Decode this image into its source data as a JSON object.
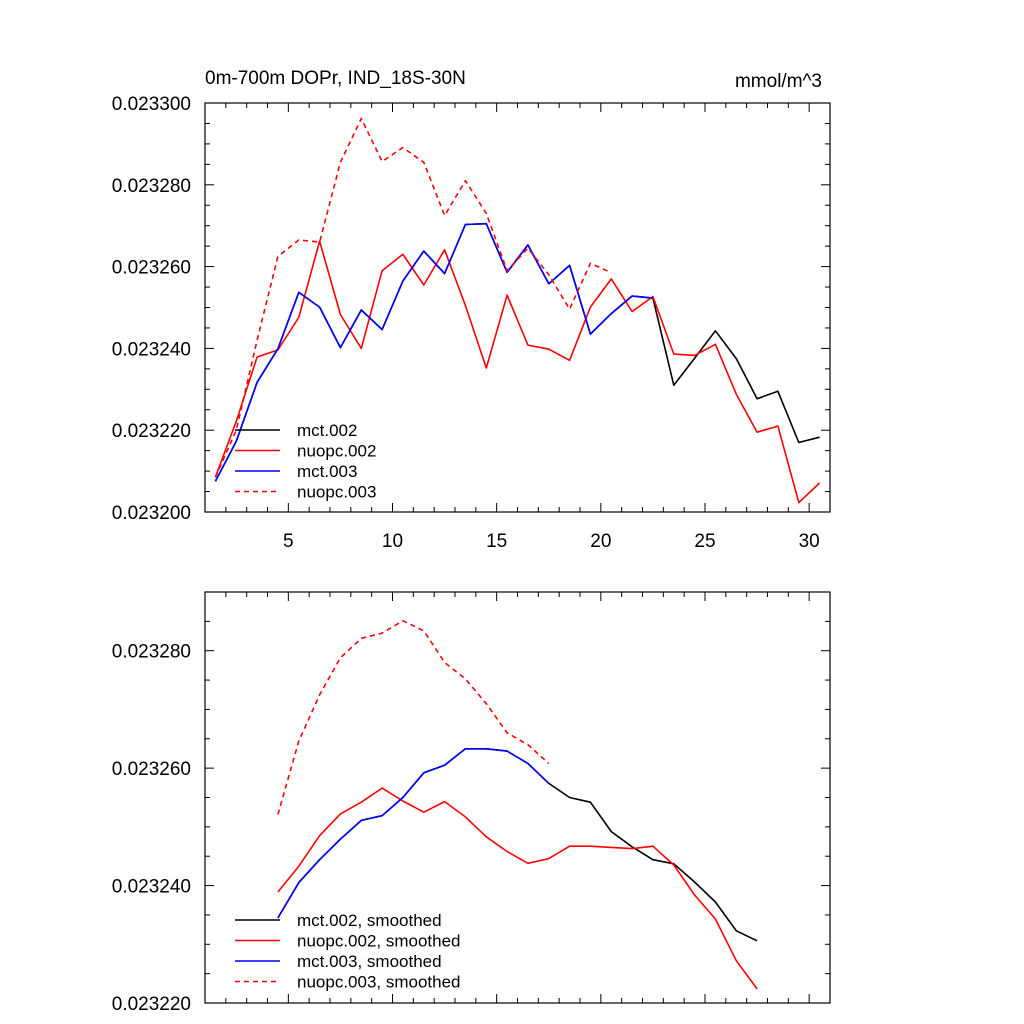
{
  "chart_data": [
    {
      "type": "line",
      "title": "0m-700m DOPr, IND_18S-30N",
      "units": "mmol/m^3",
      "xlabel": "",
      "ylabel": "",
      "xlim": [
        1,
        31
      ],
      "ylim": [
        0.0232,
        0.0233
      ],
      "xticks": [
        5,
        10,
        15,
        20,
        25,
        30
      ],
      "xtick_labels": [
        "5",
        "10",
        "15",
        "20",
        "25",
        "30"
      ],
      "yticks": [
        0.0232,
        0.02322,
        0.02324,
        0.02326,
        0.02328,
        0.0233
      ],
      "ytick_labels": [
        "0.023200",
        "0.023220",
        "0.023240",
        "0.023260",
        "0.023280",
        "0.023300"
      ],
      "legend_position": "bottom-left",
      "series": [
        {
          "name": "mct.002",
          "color": "#000000",
          "dash": "solid",
          "x": [
            1.5,
            2.5,
            3.5,
            4.5,
            5.5,
            6.5,
            7.5,
            8.5,
            9.5,
            10.5,
            11.5,
            12.5,
            13.5,
            14.5,
            15.5,
            16.5,
            17.5,
            18.5,
            19.5,
            20.5,
            21.5,
            22.5,
            23.5,
            24.5,
            25.5,
            26.5,
            27.5,
            28.5,
            29.5,
            30.5
          ],
          "values": [
            0.0232075,
            0.0232173,
            0.0232317,
            0.0232399,
            0.0232537,
            0.0232501,
            0.0232402,
            0.0232494,
            0.0232446,
            0.0232565,
            0.0232638,
            0.0232583,
            0.0232703,
            0.0232705,
            0.0232586,
            0.0232653,
            0.0232558,
            0.0232603,
            0.0232435,
            0.0232485,
            0.0232528,
            0.0232523,
            0.023231,
            0.0232376,
            0.0232443,
            0.0232375,
            0.0232277,
            0.0232295,
            0.023217,
            0.0232183
          ]
        },
        {
          "name": "nuopc.002",
          "color": "#ff0000",
          "dash": "solid",
          "x": [
            1.5,
            2.5,
            3.5,
            4.5,
            5.5,
            6.5,
            7.5,
            8.5,
            9.5,
            10.5,
            11.5,
            12.5,
            13.5,
            14.5,
            15.5,
            16.5,
            17.5,
            18.5,
            19.5,
            20.5,
            21.5,
            22.5,
            23.5,
            24.5,
            25.5,
            26.5,
            27.5,
            28.5,
            29.5,
            30.5
          ],
          "values": [
            0.0232085,
            0.0232222,
            0.0232379,
            0.0232396,
            0.0232476,
            0.0232662,
            0.0232483,
            0.02324,
            0.023259,
            0.023263,
            0.0232555,
            0.0232641,
            0.0232505,
            0.0232352,
            0.023253,
            0.0232408,
            0.0232398,
            0.0232371,
            0.0232501,
            0.023257,
            0.023249,
            0.0232527,
            0.0232386,
            0.0232383,
            0.023241,
            0.0232288,
            0.0232195,
            0.023221,
            0.0232023,
            0.0232071
          ]
        },
        {
          "name": "mct.003",
          "color": "#0000ff",
          "dash": "solid",
          "x": [
            1.5,
            2.5,
            3.5,
            4.5,
            5.5,
            6.5,
            7.5,
            8.5,
            9.5,
            10.5,
            11.5,
            12.5,
            13.5,
            14.5,
            15.5,
            16.5,
            17.5,
            18.5,
            19.5,
            20.5,
            21.5,
            22.5
          ],
          "values": [
            0.0232075,
            0.0232173,
            0.0232317,
            0.0232399,
            0.0232537,
            0.0232501,
            0.0232402,
            0.0232494,
            0.0232446,
            0.0232565,
            0.0232638,
            0.0232583,
            0.0232703,
            0.0232705,
            0.0232586,
            0.0232653,
            0.0232558,
            0.0232603,
            0.0232435,
            0.0232485,
            0.0232528,
            0.0232523
          ]
        },
        {
          "name": "nuopc.003",
          "color": "#ff0000",
          "dash": "dashed",
          "x": [
            1.5,
            2.5,
            3.5,
            4.5,
            5.5,
            6.5,
            7.5,
            8.5,
            9.5,
            10.5,
            11.5,
            12.5,
            13.5,
            14.5,
            15.5,
            16.5,
            17.5,
            18.5,
            19.5,
            20.5
          ],
          "values": [
            0.0232085,
            0.02322,
            0.023242,
            0.0232625,
            0.0232665,
            0.023266,
            0.0232855,
            0.0232962,
            0.0232857,
            0.0232891,
            0.0232855,
            0.0232725,
            0.023281,
            0.023273,
            0.023259,
            0.0232645,
            0.023258,
            0.0232496,
            0.0232608,
            0.0232585
          ]
        }
      ]
    },
    {
      "type": "line",
      "title": "",
      "xlabel": "",
      "ylabel": "",
      "xlim": [
        1,
        31
      ],
      "ylim": [
        0.02322,
        0.02329
      ],
      "xticks": [
        5,
        10,
        15,
        20,
        25,
        30
      ],
      "xtick_labels": [],
      "yticks": [
        0.02322,
        0.02324,
        0.02326,
        0.02328
      ],
      "ytick_labels": [
        "0.023220",
        "0.023240",
        "0.023260",
        "0.023280"
      ],
      "legend_position": "bottom-left",
      "series": [
        {
          "name": "mct.002, smoothed",
          "color": "#000000",
          "dash": "solid",
          "x": [
            4.5,
            5.5,
            6.5,
            7.5,
            8.5,
            9.5,
            10.5,
            11.5,
            12.5,
            13.5,
            14.5,
            15.5,
            16.5,
            17.5,
            18.5,
            19.5,
            20.5,
            21.5,
            22.5,
            23.5,
            24.5,
            25.5,
            26.5,
            27.5
          ],
          "values": [
            0.0232345,
            0.0232405,
            0.0232444,
            0.0232479,
            0.0232511,
            0.0232519,
            0.023255,
            0.0232592,
            0.0232605,
            0.0232633,
            0.0232633,
            0.0232629,
            0.0232608,
            0.0232574,
            0.023255,
            0.0232542,
            0.0232492,
            0.0232466,
            0.0232444,
            0.0232437,
            0.0232406,
            0.0232372,
            0.0232323,
            0.0232306
          ]
        },
        {
          "name": "nuopc.002, smoothed",
          "color": "#ff0000",
          "dash": "solid",
          "x": [
            4.5,
            5.5,
            6.5,
            7.5,
            8.5,
            9.5,
            10.5,
            11.5,
            12.5,
            13.5,
            14.5,
            15.5,
            16.5,
            17.5,
            18.5,
            19.5,
            20.5,
            21.5,
            22.5,
            23.5,
            24.5,
            25.5,
            26.5,
            27.5
          ],
          "values": [
            0.0232389,
            0.0232433,
            0.0232485,
            0.0232522,
            0.0232542,
            0.0232566,
            0.0232544,
            0.0232525,
            0.0232543,
            0.0232517,
            0.0232483,
            0.0232458,
            0.0232438,
            0.0232446,
            0.0232467,
            0.0232467,
            0.0232465,
            0.0232463,
            0.0232467,
            0.0232435,
            0.0232384,
            0.0232343,
            0.0232272,
            0.0232224
          ]
        },
        {
          "name": "mct.003, smoothed",
          "color": "#0000ff",
          "dash": "solid",
          "x": [
            4.5,
            5.5,
            6.5,
            7.5,
            8.5,
            9.5,
            10.5,
            11.5,
            12.5,
            13.5,
            14.5,
            15.5,
            16.5,
            17.5
          ],
          "values": [
            0.0232345,
            0.0232405,
            0.0232444,
            0.0232479,
            0.0232511,
            0.0232519,
            0.023255,
            0.0232592,
            0.0232605,
            0.0232633,
            0.0232633,
            0.0232629,
            0.0232608,
            0.0232574
          ]
        },
        {
          "name": "nuopc.003, smoothed",
          "color": "#ff0000",
          "dash": "dashed",
          "x": [
            4.5,
            5.5,
            6.5,
            7.5,
            8.5,
            9.5,
            10.5,
            11.5,
            12.5,
            13.5,
            14.5,
            15.5,
            16.5,
            17.5
          ],
          "values": [
            0.0232521,
            0.0232646,
            0.0232725,
            0.0232788,
            0.0232821,
            0.023283,
            0.0232851,
            0.0232834,
            0.023278,
            0.0232752,
            0.023271,
            0.023266,
            0.023264,
            0.0232608
          ]
        }
      ]
    }
  ]
}
